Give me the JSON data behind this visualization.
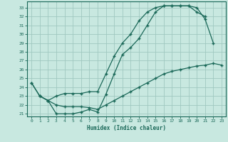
{
  "xlabel": "Humidex (Indice chaleur)",
  "bg_color": "#c8e8e0",
  "grid_color": "#a0c8c0",
  "line_color": "#1a6858",
  "xlim": [
    -0.5,
    23.5
  ],
  "ylim": [
    20.7,
    33.7
  ],
  "yticks": [
    21,
    22,
    23,
    24,
    25,
    26,
    27,
    28,
    29,
    30,
    31,
    32,
    33
  ],
  "xticks": [
    0,
    1,
    2,
    3,
    4,
    5,
    6,
    7,
    8,
    9,
    10,
    11,
    12,
    13,
    14,
    15,
    16,
    17,
    18,
    19,
    20,
    21,
    22,
    23
  ],
  "series1_x": [
    0,
    1,
    2,
    3,
    4,
    5,
    6,
    7,
    8,
    9,
    10,
    11,
    12,
    13,
    14,
    15,
    16,
    17,
    18,
    19,
    20,
    21,
    22
  ],
  "series1_y": [
    24.5,
    23.0,
    22.5,
    23.0,
    23.3,
    23.3,
    23.3,
    23.5,
    23.5,
    25.5,
    27.5,
    29.0,
    30.0,
    31.5,
    32.5,
    33.0,
    33.2,
    33.2,
    33.2,
    33.2,
    33.0,
    31.7,
    29.0
  ],
  "series2_x": [
    1,
    2,
    3,
    4,
    5,
    6,
    7,
    8,
    9,
    10,
    11,
    12,
    13,
    14,
    15,
    16,
    17,
    18,
    19,
    20,
    21
  ],
  "series2_y": [
    23.0,
    22.5,
    21.0,
    21.0,
    21.0,
    21.2,
    21.5,
    21.2,
    23.2,
    25.5,
    27.7,
    28.5,
    29.5,
    31.0,
    32.5,
    33.2,
    33.2,
    33.2,
    33.2,
    32.5,
    32.0
  ],
  "series3_x": [
    0,
    1,
    2,
    3,
    4,
    5,
    6,
    7,
    8,
    9,
    10,
    11,
    12,
    13,
    14,
    15,
    16,
    17,
    18,
    19,
    20,
    21,
    22,
    23
  ],
  "series3_y": [
    24.5,
    23.0,
    22.5,
    22.0,
    21.8,
    21.8,
    21.8,
    21.7,
    21.5,
    22.0,
    22.5,
    23.0,
    23.5,
    24.0,
    24.5,
    25.0,
    25.5,
    25.8,
    26.0,
    26.2,
    26.4,
    26.5,
    26.7,
    26.5
  ]
}
